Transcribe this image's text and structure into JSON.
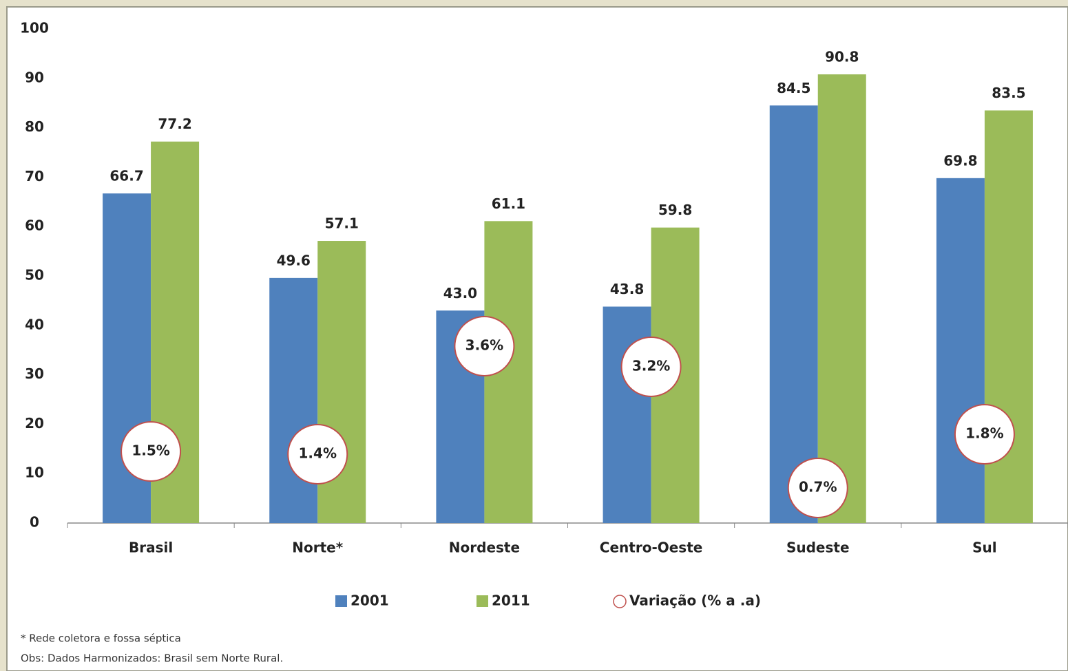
{
  "chart_data": {
    "type": "bar",
    "categories": [
      "Brasil",
      "Norte*",
      "Nordeste",
      "Centro-Oeste",
      "Sudeste",
      "Sul"
    ],
    "series": [
      {
        "name": "2001",
        "color": "#4f81bd",
        "values": [
          66.7,
          49.6,
          43.0,
          43.8,
          84.5,
          69.8
        ],
        "value_labels": [
          "66.7",
          "49.6",
          "43.0",
          "43.8",
          "84.5",
          "69.8"
        ]
      },
      {
        "name": "2011",
        "color": "#9bbb59",
        "values": [
          77.2,
          57.1,
          61.1,
          59.8,
          90.8,
          83.5
        ],
        "value_labels": [
          "77.2",
          "57.1",
          "61.1",
          "59.8",
          "90.8",
          "83.5"
        ]
      }
    ],
    "variation": {
      "name": "Variação (% a .a)",
      "color": "#c0504d",
      "values": [
        1.5,
        1.4,
        3.6,
        3.2,
        0.7,
        1.8
      ],
      "value_labels": [
        "1.5%",
        "1.4%",
        "3.6%",
        "3.2%",
        "0.7%",
        "1.8%"
      ]
    },
    "ylim": [
      0,
      100
    ],
    "yticks": [
      0,
      10,
      20,
      30,
      40,
      50,
      60,
      70,
      80,
      90,
      100
    ],
    "notes": [
      "* Rede coletora e fossa séptica",
      "Obs:  Dados Harmonizados: Brasil sem Norte Rural."
    ]
  }
}
